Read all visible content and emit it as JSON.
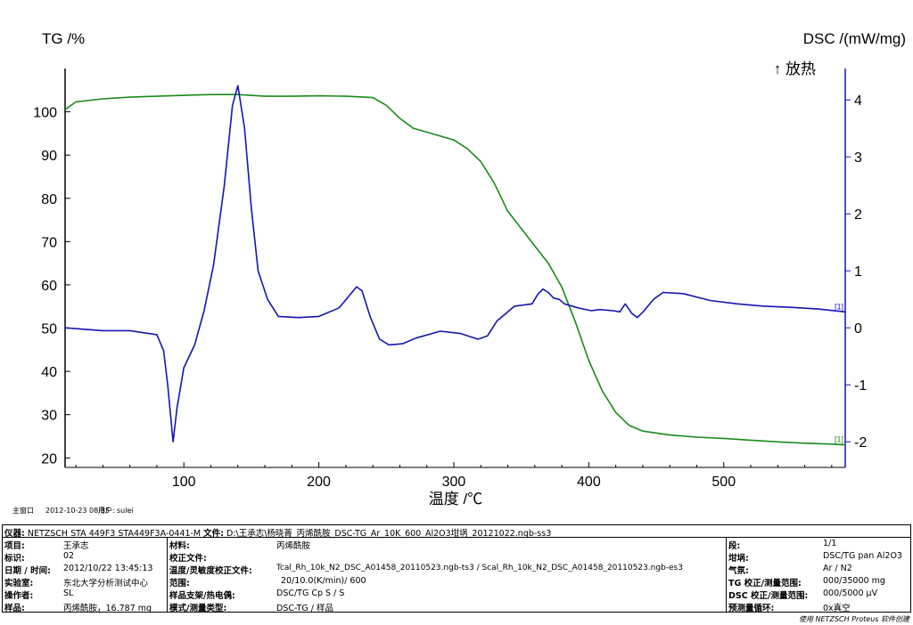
{
  "chart_data": {
    "type": "line",
    "ylabel_left": "TG /%",
    "ylabel_right": "DSC /(mW/mg)",
    "xlabel": "温度 /℃",
    "annotation_exo": "↑ 放热",
    "xlim": [
      12,
      590
    ],
    "x_ticks": [
      100,
      200,
      300,
      400,
      500
    ],
    "ylim_left": [
      17.8,
      110
    ],
    "y_ticks_left": [
      20,
      30,
      40,
      50,
      60,
      70,
      80,
      90,
      100
    ],
    "ylim_right": [
      -2.45,
      4.55
    ],
    "y_ticks_right": [
      -2,
      -1,
      0,
      1,
      2,
      3,
      4
    ],
    "series": [
      {
        "curve_label": "[1]",
        "axis": "left",
        "color": "#1a8a1a",
        "points": [
          [
            12,
            100.5
          ],
          [
            20,
            102.3
          ],
          [
            40,
            103.0
          ],
          [
            60,
            103.4
          ],
          [
            80,
            103.6
          ],
          [
            100,
            103.8
          ],
          [
            120,
            104.0
          ],
          [
            140,
            104.0
          ],
          [
            160,
            103.6
          ],
          [
            180,
            103.6
          ],
          [
            200,
            103.7
          ],
          [
            220,
            103.6
          ],
          [
            240,
            103.3
          ],
          [
            250,
            101.5
          ],
          [
            260,
            98.5
          ],
          [
            270,
            96.2
          ],
          [
            280,
            95.3
          ],
          [
            300,
            93.5
          ],
          [
            310,
            91.5
          ],
          [
            320,
            88.5
          ],
          [
            330,
            83.5
          ],
          [
            340,
            77.0
          ],
          [
            350,
            73.0
          ],
          [
            360,
            69.0
          ],
          [
            370,
            65.0
          ],
          [
            380,
            59.5
          ],
          [
            390,
            51.5
          ],
          [
            400,
            42.5
          ],
          [
            410,
            35.5
          ],
          [
            420,
            30.5
          ],
          [
            430,
            27.5
          ],
          [
            440,
            26.2
          ],
          [
            460,
            25.3
          ],
          [
            480,
            24.8
          ],
          [
            500,
            24.5
          ],
          [
            520,
            24.1
          ],
          [
            540,
            23.7
          ],
          [
            560,
            23.4
          ],
          [
            580,
            23.2
          ],
          [
            590,
            23.0
          ]
        ]
      },
      {
        "curve_label": "[1]",
        "axis": "right",
        "color": "#1515b0",
        "points": [
          [
            12,
            0.0
          ],
          [
            40,
            -0.05
          ],
          [
            60,
            -0.05
          ],
          [
            80,
            -0.12
          ],
          [
            85,
            -0.4
          ],
          [
            88,
            -1.0
          ],
          [
            92,
            -2.0
          ],
          [
            95,
            -1.4
          ],
          [
            100,
            -0.7
          ],
          [
            108,
            -0.3
          ],
          [
            115,
            0.3
          ],
          [
            122,
            1.1
          ],
          [
            130,
            2.5
          ],
          [
            136,
            3.9
          ],
          [
            140,
            4.25
          ],
          [
            145,
            3.5
          ],
          [
            150,
            2.1
          ],
          [
            155,
            1.0
          ],
          [
            162,
            0.5
          ],
          [
            170,
            0.2
          ],
          [
            185,
            0.18
          ],
          [
            200,
            0.2
          ],
          [
            215,
            0.35
          ],
          [
            228,
            0.72
          ],
          [
            232,
            0.65
          ],
          [
            238,
            0.2
          ],
          [
            245,
            -0.2
          ],
          [
            252,
            -0.3
          ],
          [
            262,
            -0.28
          ],
          [
            272,
            -0.18
          ],
          [
            290,
            -0.06
          ],
          [
            305,
            -0.1
          ],
          [
            318,
            -0.2
          ],
          [
            325,
            -0.14
          ],
          [
            332,
            0.12
          ],
          [
            345,
            0.38
          ],
          [
            358,
            0.42
          ],
          [
            362,
            0.58
          ],
          [
            366,
            0.68
          ],
          [
            370,
            0.62
          ],
          [
            374,
            0.52
          ],
          [
            378,
            0.5
          ],
          [
            382,
            0.42
          ],
          [
            392,
            0.35
          ],
          [
            402,
            0.3
          ],
          [
            408,
            0.32
          ],
          [
            418,
            0.3
          ],
          [
            423,
            0.28
          ],
          [
            427,
            0.42
          ],
          [
            432,
            0.25
          ],
          [
            436,
            0.18
          ],
          [
            441,
            0.3
          ],
          [
            448,
            0.5
          ],
          [
            455,
            0.62
          ],
          [
            470,
            0.6
          ],
          [
            490,
            0.48
          ],
          [
            510,
            0.42
          ],
          [
            530,
            0.38
          ],
          [
            550,
            0.36
          ],
          [
            570,
            0.33
          ],
          [
            590,
            0.28
          ]
        ]
      }
    ]
  },
  "meta_line": {
    "stamp": "主窗口",
    "datetime": "2012-10-23 08:35",
    "user_label": "用户:",
    "user": "sulei"
  },
  "info": {
    "instrument_label": "仪器:",
    "instrument_value": "NETZSCH STA 449F3 STA449F3A-0441-M",
    "file_label": "文件:",
    "file_value": "D:\\王承志\\杨晓菁_丙烯酰胺_DSC-TG_Ar_10K_600_Al2O3坩埚_20121022.ngb-ss3",
    "project_label": "项目:",
    "project_value": "王承志",
    "id_label": "标识:",
    "id_value": "02",
    "date_label": "日期 / 时间:",
    "date_value": "2012/10/22 13:45:13",
    "lab_label": "实验室:",
    "lab_value": "东北大学分析测试中心",
    "operator_label": "操作者:",
    "operator_value": "SL",
    "sample_label": "样品:",
    "sample_value": "丙烯酰胺，16.787 mg",
    "material_label": "材料:",
    "material_value": "丙烯酰胺",
    "corr_label": "校正文件:",
    "corr_value": "",
    "tempsens_label": "温度/灵敏度校正文件:",
    "tempsens_value": "Tcal_Rh_10k_N2_DSC_A01458_20110523.ngb-ts3 / Scal_Rh_10k_N2_DSC_A01458_20110523.ngb-es3",
    "range_label": "范围:",
    "range_value": "20/10.0(K/min)/ 600",
    "holder_label": "样品支架/热电偶:",
    "holder_value": "DSC/TG Cp S / S",
    "mode_label": "模式/测量类型:",
    "mode_value": "DSC-TG / 样品",
    "segment_label": "段:",
    "segment_value": "1/1",
    "crucible_label": "坩埚:",
    "crucible_value": "DSC/TG pan Al2O3",
    "gas_label": "气氛:",
    "gas_value": "Ar / N2",
    "tgrange_label": "TG 校正/测量范围:",
    "tgrange_value": "000/35000 mg",
    "dscrange_label": "DSC 校正/测量范围:",
    "dscrange_value": "000/5000 µV",
    "cycles_label": "预测量循环:",
    "cycles_value": "0x真空"
  },
  "footer": "使用 NETZSCH Proteus 软件创建"
}
